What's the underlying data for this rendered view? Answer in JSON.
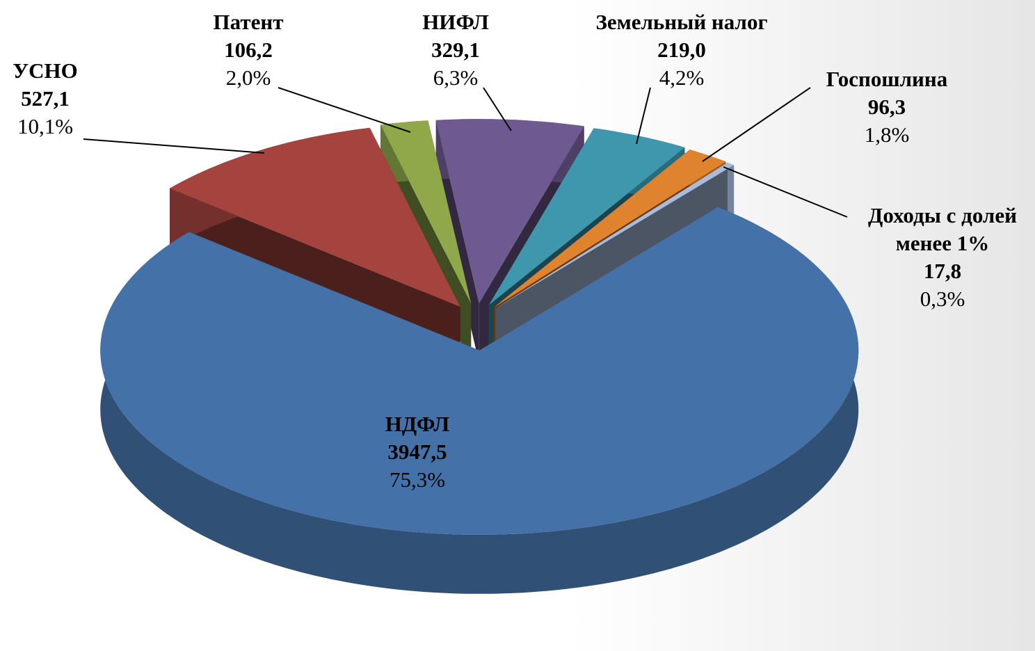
{
  "chart_data": {
    "type": "pie",
    "three_d": true,
    "exploded": true,
    "categories": [
      "УСНО",
      "Патент",
      "НИФЛ",
      "Земельный налог",
      "Госпошлина",
      "Доходы с долей менее 1%",
      "НДФЛ"
    ],
    "values": [
      527.1,
      106.2,
      329.1,
      219.0,
      96.3,
      17.8,
      3947.5
    ],
    "value_labels": [
      "527,1",
      "106,2",
      "329,1",
      "219,0",
      "96,3",
      "17,8",
      "3947,5"
    ],
    "percentages": [
      10.1,
      2.0,
      6.3,
      4.2,
      1.8,
      0.3,
      75.3
    ],
    "percentage_labels": [
      "10,1%",
      "2,0%",
      "6,3%",
      "4,2%",
      "1,8%",
      "0,3%",
      "75,3%"
    ],
    "colors": [
      "#a5443f",
      "#8ea84a",
      "#6e5a91",
      "#3e97ad",
      "#e0832e",
      "#a9bcdc",
      "#4472a8"
    ]
  }
}
